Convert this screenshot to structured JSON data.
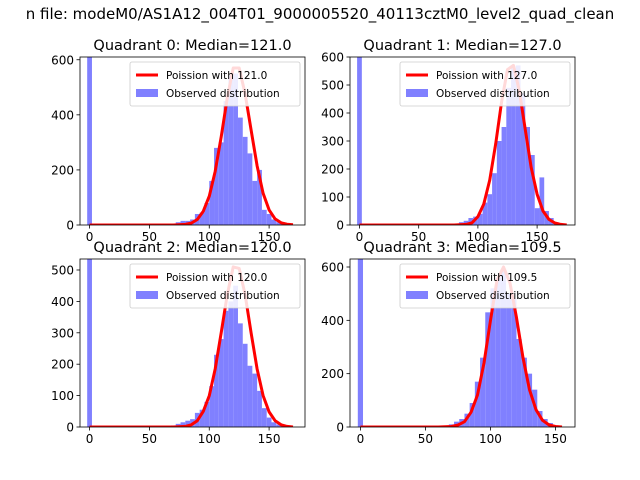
{
  "figure": {
    "suptitle": "n file: modeM0/AS1A12_004T01_9000005520_40113cztM0_level2_quad_clean"
  },
  "style": {
    "bar_color": "#8080ff",
    "line_color": "#ff0000"
  },
  "chart_data": [
    {
      "type": "bar",
      "title": "Quadrant 0: Median=121.0",
      "xlim": [
        -8,
        180
      ],
      "ylim": [
        0,
        610
      ],
      "xticks": [
        0,
        50,
        100,
        150
      ],
      "yticks": [
        0,
        200,
        400,
        600
      ],
      "legend": {
        "placement": "top-right",
        "entries": [
          "Poission with 121.0",
          "Observed distribution"
        ]
      },
      "bar_width": 4,
      "histogram": {
        "x": [
          0,
          70,
          74,
          78,
          82,
          86,
          90,
          94,
          98,
          102,
          106,
          110,
          114,
          118,
          122,
          126,
          130,
          134,
          138,
          142,
          146,
          150,
          154,
          158,
          162,
          166
        ],
        "values": [
          610,
          5,
          10,
          15,
          15,
          20,
          40,
          45,
          80,
          160,
          280,
          300,
          450,
          540,
          550,
          390,
          320,
          260,
          160,
          200,
          55,
          40,
          20,
          10,
          5,
          3
        ]
      },
      "curve": {
        "name": "Poission with 121.0",
        "x": [
          0,
          70,
          80,
          85,
          90,
          95,
          100,
          105,
          110,
          115,
          120,
          125,
          130,
          135,
          140,
          145,
          150,
          155,
          160,
          165,
          170
        ],
        "y": [
          0,
          0,
          2,
          7,
          20,
          50,
          105,
          195,
          320,
          460,
          570,
          570,
          475,
          345,
          215,
          115,
          55,
          22,
          8,
          3,
          1
        ]
      }
    },
    {
      "type": "bar",
      "title": "Quadrant 1: Median=127.0",
      "xlim": [
        -8,
        182
      ],
      "ylim": [
        0,
        600
      ],
      "xticks": [
        0,
        50,
        100,
        150
      ],
      "yticks": [
        0,
        100,
        200,
        300,
        400,
        500,
        600
      ],
      "legend": {
        "placement": "top-right",
        "entries": [
          "Poission with 127.0",
          "Observed distribution"
        ]
      },
      "bar_width": 4,
      "histogram": {
        "x": [
          0,
          80,
          86,
          90,
          94,
          98,
          102,
          106,
          110,
          114,
          118,
          122,
          126,
          130,
          134,
          138,
          142,
          146,
          150,
          154,
          158,
          162,
          166
        ],
        "values": [
          600,
          5,
          10,
          15,
          25,
          30,
          40,
          80,
          110,
          185,
          300,
          350,
          490,
          560,
          570,
          470,
          350,
          250,
          60,
          170,
          50,
          25,
          10
        ]
      },
      "curve": {
        "name": "Poission with 127.0",
        "x": [
          0,
          80,
          90,
          95,
          100,
          105,
          110,
          115,
          120,
          125,
          130,
          135,
          140,
          145,
          150,
          155,
          160,
          165,
          170,
          175
        ],
        "y": [
          0,
          0,
          2,
          8,
          30,
          75,
          160,
          290,
          440,
          555,
          570,
          480,
          340,
          205,
          110,
          50,
          20,
          7,
          2,
          0
        ]
      }
    },
    {
      "type": "bar",
      "title": "Quadrant 2: Median=120.0",
      "xlim": [
        -8,
        180
      ],
      "ylim": [
        0,
        535
      ],
      "xticks": [
        0,
        50,
        100,
        150
      ],
      "yticks": [
        0,
        100,
        200,
        300,
        400,
        500
      ],
      "legend": {
        "placement": "top-right",
        "entries": [
          "Poission with 120.0",
          "Observed distribution"
        ]
      },
      "bar_width": 4,
      "histogram": {
        "x": [
          0,
          70,
          74,
          78,
          82,
          86,
          90,
          94,
          98,
          102,
          106,
          110,
          114,
          118,
          122,
          126,
          130,
          134,
          138,
          142,
          146,
          150,
          154,
          158,
          162,
          166
        ],
        "values": [
          535,
          5,
          10,
          15,
          20,
          25,
          45,
          55,
          80,
          130,
          230,
          280,
          370,
          400,
          450,
          330,
          265,
          195,
          170,
          115,
          60,
          30,
          15,
          8,
          4,
          2
        ]
      },
      "curve": {
        "name": "Poission with 120.0",
        "x": [
          0,
          70,
          80,
          85,
          90,
          95,
          100,
          105,
          110,
          115,
          120,
          125,
          130,
          135,
          140,
          145,
          150,
          155,
          160,
          165,
          170
        ],
        "y": [
          0,
          0,
          2,
          7,
          20,
          50,
          100,
          185,
          300,
          420,
          510,
          505,
          420,
          300,
          185,
          100,
          48,
          20,
          7,
          2,
          0
        ]
      }
    },
    {
      "type": "bar",
      "title": "Quadrant 3: Median=109.5",
      "xlim": [
        -8,
        165
      ],
      "ylim": [
        0,
        630
      ],
      "xticks": [
        0,
        50,
        100,
        150
      ],
      "yticks": [
        0,
        200,
        400,
        600
      ],
      "legend": {
        "placement": "top-right",
        "entries": [
          "Poission with 109.5",
          "Observed distribution"
        ]
      },
      "bar_width": 4,
      "histogram": {
        "x": [
          0,
          70,
          74,
          78,
          82,
          86,
          90,
          94,
          98,
          102,
          106,
          110,
          114,
          118,
          122,
          126,
          130,
          134,
          138,
          142,
          146,
          150
        ],
        "values": [
          630,
          10,
          20,
          30,
          50,
          90,
          170,
          260,
          430,
          520,
          560,
          590,
          500,
          480,
          330,
          260,
          200,
          140,
          60,
          30,
          15,
          5
        ]
      },
      "curve": {
        "name": "Poission with 109.5",
        "x": [
          0,
          60,
          70,
          75,
          80,
          85,
          90,
          95,
          100,
          105,
          110,
          115,
          120,
          125,
          130,
          135,
          140,
          145,
          150,
          155
        ],
        "y": [
          0,
          0,
          2,
          7,
          20,
          55,
          120,
          240,
          400,
          550,
          600,
          540,
          410,
          260,
          140,
          65,
          25,
          8,
          2,
          0
        ]
      }
    }
  ]
}
